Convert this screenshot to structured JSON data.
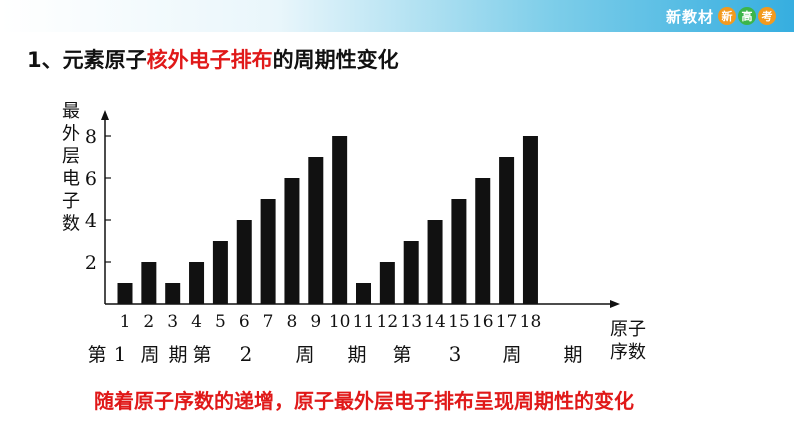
{
  "header": {
    "brand_text": "新教材",
    "brand_badges": [
      {
        "char": "新",
        "color": "#f39a1e"
      },
      {
        "char": "高",
        "color": "#3cb54a"
      },
      {
        "char": "考",
        "color": "#f39a1e"
      }
    ]
  },
  "title": {
    "prefix": "1、元素原子",
    "highlight": "核外电子排布",
    "suffix": "的周期性变化",
    "highlight_color": "#e01919"
  },
  "chart_data": {
    "type": "bar",
    "categories": [
      "1",
      "2",
      "3",
      "4",
      "5",
      "6",
      "7",
      "8",
      "9",
      "10",
      "11",
      "12",
      "13",
      "14",
      "15",
      "16",
      "17",
      "18"
    ],
    "values": [
      1,
      2,
      1,
      2,
      3,
      4,
      5,
      6,
      7,
      8,
      1,
      2,
      3,
      4,
      5,
      6,
      7,
      8
    ],
    "ylabel": "最外层电子数",
    "xlabel": "原子序数",
    "yticks": [
      2,
      4,
      6,
      8
    ],
    "ylim": [
      0,
      9
    ],
    "grid": false,
    "bar_color": "#111111",
    "period_labels": [
      "第",
      "1",
      "周",
      "期",
      "第",
      "2",
      "周",
      "期",
      "第",
      "3",
      "周",
      "期"
    ]
  },
  "bottom_note": "随着原子序数的递增，原子最外层电子排布呈现周期性的变化"
}
